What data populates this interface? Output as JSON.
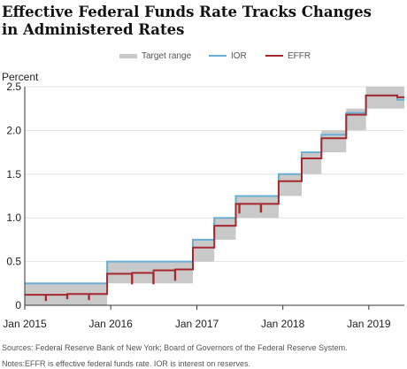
{
  "chart_data": {
    "type": "line",
    "title": "Effective Federal Funds Rate Tracks Changes in Administered Rates",
    "ylabel": "Percent",
    "xlabel": "",
    "ylim": [
      0,
      2.5
    ],
    "y_ticks": [
      0,
      0.5,
      1.0,
      1.5,
      2.0,
      2.5
    ],
    "y_tick_labels": [
      "0",
      "0.5",
      "1.0",
      "1.5",
      "2.0",
      "2.5"
    ],
    "x_range": [
      "2015-01-01",
      "2019-06-01"
    ],
    "x_ticks": [
      "2015-01-01",
      "2016-01-01",
      "2017-01-01",
      "2018-01-01",
      "2019-01-01"
    ],
    "x_tick_labels": [
      "Jan 2015",
      "Jan 2016",
      "Jan 2017",
      "Jan 2018",
      "Jan 2019"
    ],
    "grid": "horizontal",
    "legend_position": "top",
    "series": [
      {
        "name": "Target range",
        "kind": "band",
        "color": "#c9c9c9",
        "points": [
          {
            "date": "2015-01-01",
            "low": 0.0,
            "high": 0.25
          },
          {
            "date": "2015-12-17",
            "low": 0.25,
            "high": 0.5
          },
          {
            "date": "2016-12-15",
            "low": 0.5,
            "high": 0.75
          },
          {
            "date": "2017-03-16",
            "low": 0.75,
            "high": 1.0
          },
          {
            "date": "2017-06-15",
            "low": 1.0,
            "high": 1.25
          },
          {
            "date": "2017-12-14",
            "low": 1.25,
            "high": 1.5
          },
          {
            "date": "2018-03-22",
            "low": 1.5,
            "high": 1.75
          },
          {
            "date": "2018-06-14",
            "low": 1.75,
            "high": 2.0
          },
          {
            "date": "2018-09-27",
            "low": 2.0,
            "high": 2.25
          },
          {
            "date": "2018-12-20",
            "low": 2.25,
            "high": 2.5
          }
        ]
      },
      {
        "name": "IOR",
        "kind": "step",
        "color": "#6aaed6",
        "points": [
          {
            "date": "2015-01-01",
            "value": 0.25
          },
          {
            "date": "2015-12-17",
            "value": 0.5
          },
          {
            "date": "2016-12-15",
            "value": 0.75
          },
          {
            "date": "2017-03-16",
            "value": 1.0
          },
          {
            "date": "2017-06-15",
            "value": 1.25
          },
          {
            "date": "2017-12-14",
            "value": 1.5
          },
          {
            "date": "2018-03-22",
            "value": 1.75
          },
          {
            "date": "2018-06-14",
            "value": 1.95
          },
          {
            "date": "2018-09-27",
            "value": 2.2
          },
          {
            "date": "2018-12-20",
            "value": 2.4
          },
          {
            "date": "2019-05-02",
            "value": 2.35
          }
        ]
      },
      {
        "name": "EFFR",
        "kind": "step",
        "color": "#a4282d",
        "points": [
          {
            "date": "2015-01-01",
            "value": 0.12
          },
          {
            "date": "2015-03-31",
            "value": 0.06
          },
          {
            "date": "2015-04-01",
            "value": 0.12
          },
          {
            "date": "2015-06-30",
            "value": 0.08
          },
          {
            "date": "2015-07-01",
            "value": 0.13
          },
          {
            "date": "2015-09-30",
            "value": 0.07
          },
          {
            "date": "2015-10-01",
            "value": 0.13
          },
          {
            "date": "2015-12-17",
            "value": 0.36
          },
          {
            "date": "2016-03-31",
            "value": 0.25
          },
          {
            "date": "2016-04-01",
            "value": 0.37
          },
          {
            "date": "2016-06-30",
            "value": 0.25
          },
          {
            "date": "2016-07-01",
            "value": 0.4
          },
          {
            "date": "2016-09-30",
            "value": 0.29
          },
          {
            "date": "2016-10-01",
            "value": 0.41
          },
          {
            "date": "2016-12-15",
            "value": 0.66
          },
          {
            "date": "2017-03-16",
            "value": 0.91
          },
          {
            "date": "2017-06-15",
            "value": 1.16
          },
          {
            "date": "2017-06-30",
            "value": 1.06
          },
          {
            "date": "2017-07-01",
            "value": 1.16
          },
          {
            "date": "2017-09-29",
            "value": 1.07
          },
          {
            "date": "2017-10-01",
            "value": 1.16
          },
          {
            "date": "2017-12-14",
            "value": 1.42
          },
          {
            "date": "2018-03-22",
            "value": 1.68
          },
          {
            "date": "2018-06-14",
            "value": 1.91
          },
          {
            "date": "2018-09-27",
            "value": 2.18
          },
          {
            "date": "2018-12-20",
            "value": 2.4
          },
          {
            "date": "2019-05-02",
            "value": 2.38
          }
        ]
      }
    ]
  },
  "notes": {
    "sources": "Sources: Federal Reserve Bank of New York; Board of Governors of the Federal Reserve System.",
    "notes": "Notes:EFFR is effective federal funds rate. IOR is interest on reserves."
  }
}
